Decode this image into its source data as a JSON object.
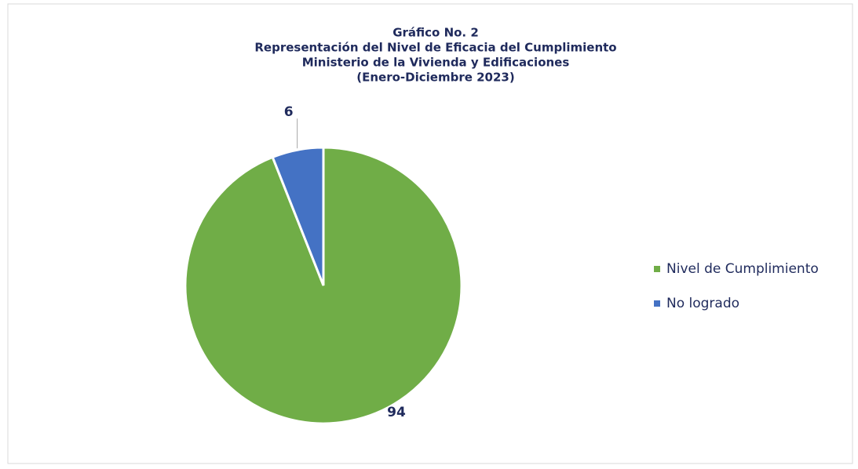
{
  "chart_data": {
    "type": "pie",
    "title": [
      "Gráfico No. 2",
      "Representación del Nivel de Eficacia del Cumplimiento",
      "Ministerio de la Vivienda y Edificaciones",
      "(Enero-Diciembre 2023)"
    ],
    "categories": [
      "Nivel de Cumplimiento",
      "No logrado"
    ],
    "values": [
      94,
      6
    ],
    "colors": [
      "#70ad47",
      "#4472c4"
    ],
    "legend": "right"
  }
}
